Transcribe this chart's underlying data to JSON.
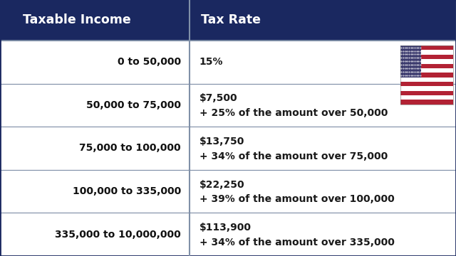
{
  "title_col1": "Taxable Income",
  "title_col2": "Tax Rate",
  "header_bg": "#1a2860",
  "header_text_color": "#ffffff",
  "row_bg": "#ffffff",
  "border_color": "#8090a8",
  "body_text_color": "#1a1a1a",
  "income_text_color": "#111111",
  "rows": [
    {
      "income": "0 to 50,000",
      "tax_line1": "15%",
      "tax_line2": "",
      "flag": 1
    },
    {
      "income": "50,000 to 75,000",
      "tax_line1": "$7,500",
      "tax_line2": "+ 25% of the amount over 50,000",
      "flag": 2
    },
    {
      "income": "75,000 to 100,000",
      "tax_line1": "$13,750",
      "tax_line2": "+ 34% of the amount over 75,000",
      "flag": 0
    },
    {
      "income": "100,000 to 335,000",
      "tax_line1": "$22,250",
      "tax_line2": "+ 39% of the amount over 100,000",
      "flag": 0
    },
    {
      "income": "335,000 to 10,000,000",
      "tax_line1": "$113,900",
      "tax_line2": "+ 34% of the amount over 335,000",
      "flag": 0
    }
  ],
  "col_split": 0.415,
  "fig_width": 6.4,
  "fig_height": 3.6,
  "header_fontsize": 12.5,
  "body_fontsize": 10.0,
  "flag_stripe_red": "#B22234",
  "flag_stripe_pink": "#EAABB4",
  "flag_blue": "#3C3B6E"
}
